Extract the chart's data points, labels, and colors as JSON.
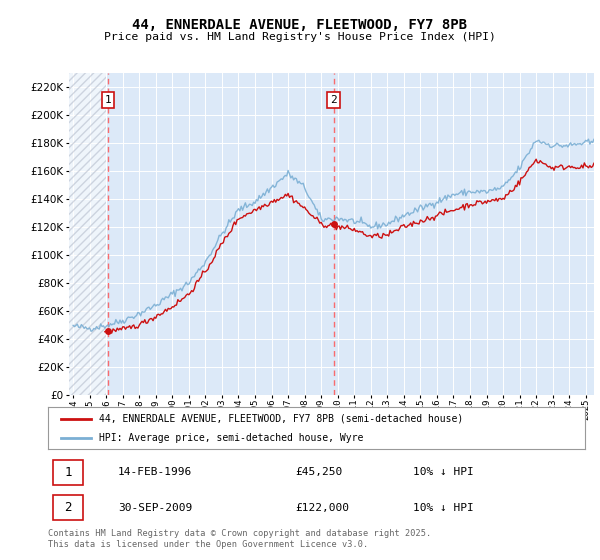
{
  "title": "44, ENNERDALE AVENUE, FLEETWOOD, FY7 8PB",
  "subtitle": "Price paid vs. HM Land Registry's House Price Index (HPI)",
  "ylim": [
    0,
    230000
  ],
  "yticks": [
    0,
    20000,
    40000,
    60000,
    80000,
    100000,
    120000,
    140000,
    160000,
    180000,
    200000,
    220000
  ],
  "xlim_start": 1993.75,
  "xlim_end": 2025.5,
  "background_color": "#ffffff",
  "plot_bg_color": "#dce9f8",
  "grid_color": "#ffffff",
  "hpi_color": "#7bafd4",
  "price_color": "#cc1111",
  "vline_color": "#ff5555",
  "marker_color": "#cc1111",
  "legend_label_price": "44, ENNERDALE AVENUE, FLEETWOOD, FY7 8PB (semi-detached house)",
  "legend_label_hpi": "HPI: Average price, semi-detached house, Wyre",
  "sale1_date_str": "14-FEB-1996",
  "sale1_price": 45250,
  "sale1_hpi_note": "10% ↓ HPI",
  "sale1_x": 1996.12,
  "sale2_date_str": "30-SEP-2009",
  "sale2_price": 122000,
  "sale2_hpi_note": "10% ↓ HPI",
  "sale2_x": 2009.75,
  "footer_text": "Contains HM Land Registry data © Crown copyright and database right 2025.\nThis data is licensed under the Open Government Licence v3.0.",
  "hatch_end": 1996.0
}
